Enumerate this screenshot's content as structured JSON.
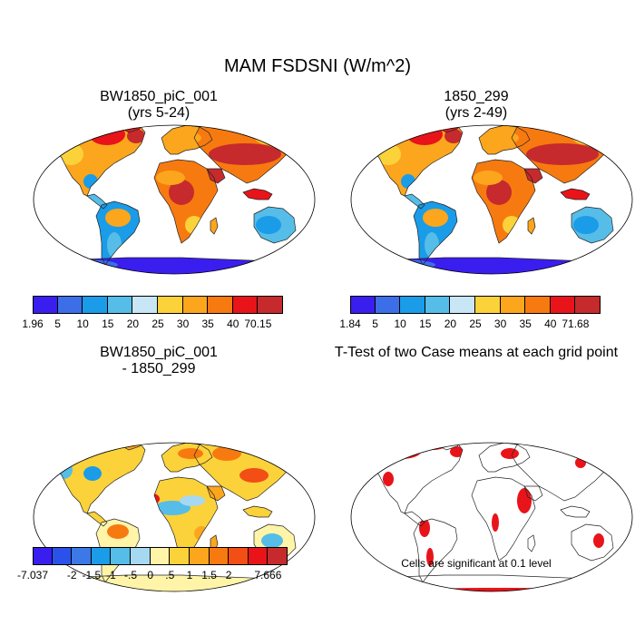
{
  "title": "MAM FSDSNI (W/m^2)",
  "panels": [
    {
      "id": "a",
      "title1": "BW1850_piC_001",
      "title2": "(yrs 5-24)"
    },
    {
      "id": "b",
      "title1": "1850_299",
      "title2": "(yrs 2-49)"
    },
    {
      "id": "c",
      "title1": "BW1850_piC_001",
      "title2": "- 1850_299"
    },
    {
      "id": "d",
      "title1": "T-Test of two Case means at each grid point",
      "title2": ""
    }
  ],
  "colorbars": [
    {
      "id": "a",
      "labels": [
        "1.96",
        "5",
        "10",
        "15",
        "20",
        "25",
        "30",
        "35",
        "40",
        "70.15"
      ],
      "colors": [
        "#3a1ef0",
        "#3c6ee8",
        "#1a9ce8",
        "#55bde8",
        "#c8e6f6",
        "#fcd23a",
        "#fba61d",
        "#f77a10",
        "#e8141a",
        "#c62a2c"
      ]
    },
    {
      "id": "b",
      "labels": [
        "1.84",
        "5",
        "10",
        "15",
        "20",
        "25",
        "30",
        "35",
        "40",
        "71.68"
      ],
      "colors": [
        "#3a1ef0",
        "#3c6ee8",
        "#1a9ce8",
        "#55bde8",
        "#c8e6f6",
        "#fcd23a",
        "#fba61d",
        "#f77a10",
        "#e8141a",
        "#c62a2c"
      ]
    },
    {
      "id": "c",
      "labels": [
        "-7.037",
        "-2",
        "-1.5",
        "-1",
        "-.5",
        "0",
        ".5",
        "1",
        "1.5",
        "2",
        "7.666"
      ],
      "label_slots": [
        0,
        2,
        3,
        4,
        5,
        6,
        7,
        8,
        9,
        10,
        12
      ],
      "colors": [
        "#3a1ef0",
        "#2a52ea",
        "#3c78e6",
        "#1a9ce8",
        "#55bde8",
        "#a6d8f2",
        "#fff4a8",
        "#fcd23a",
        "#fba61d",
        "#f77a10",
        "#f24e16",
        "#e8141a",
        "#c62a2c"
      ]
    }
  ],
  "note": "Cells are significant at 0.1 level"
}
